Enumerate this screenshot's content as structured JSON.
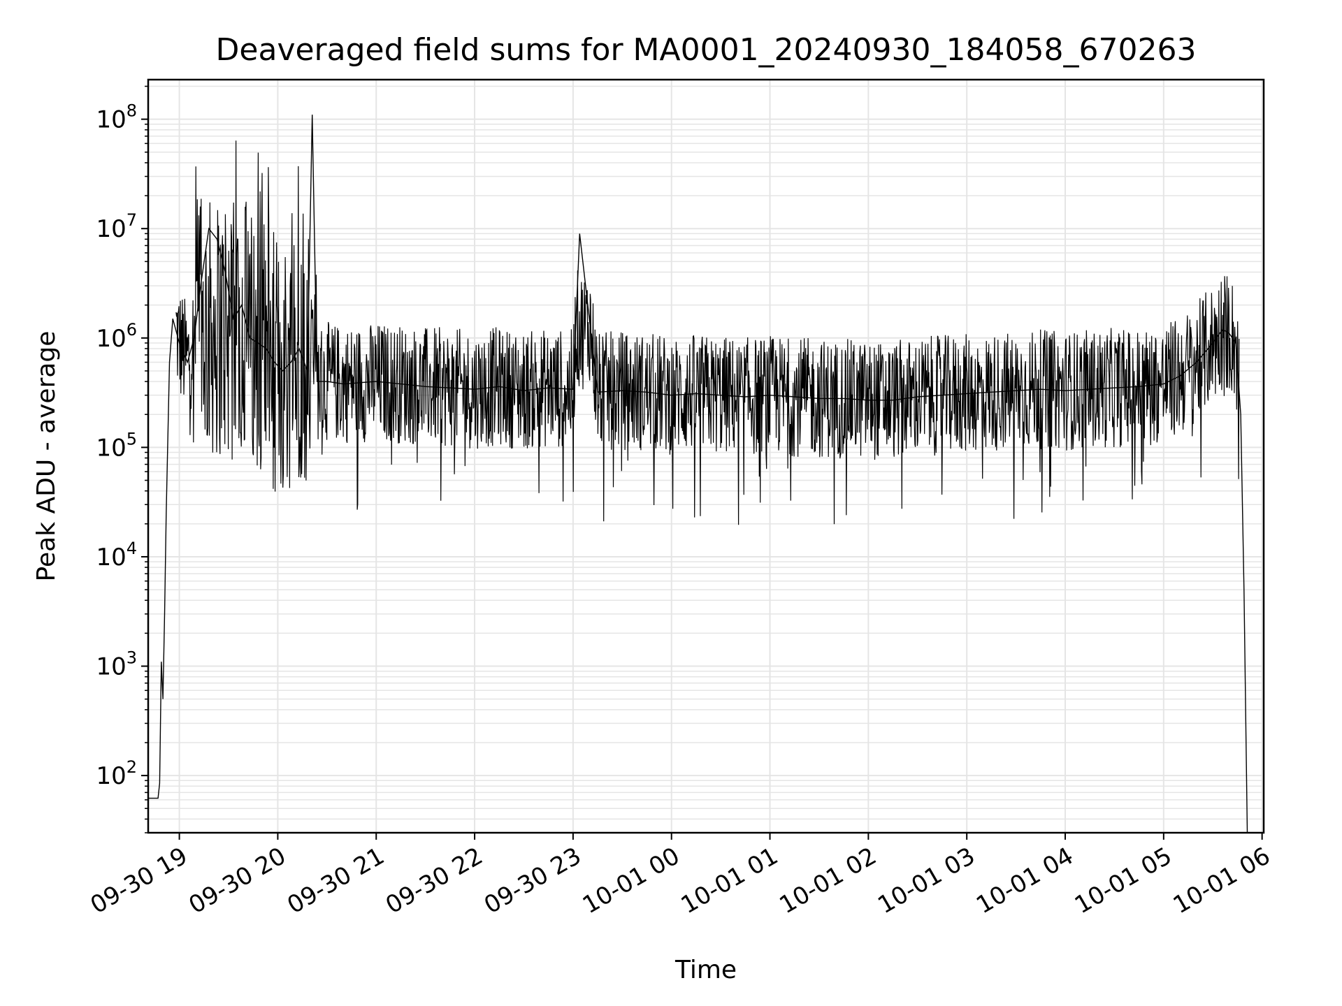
{
  "chart_data": {
    "type": "line",
    "title": "Deaveraged field sums for MA0001_20240930_184058_670263",
    "xlabel": "Time",
    "ylabel": "Peak ADU - average",
    "yscale": "log",
    "ylim": [
      30,
      230000000
    ],
    "xlim": [
      "2024-09-30 18:41",
      "2024-10-01 06:01"
    ],
    "grid": true,
    "legend": "none",
    "line_color": "#000000",
    "grid_color": "#e5e5e5",
    "x_ticks": [
      {
        "time": "2024-09-30 19:00",
        "label": "09-30 19"
      },
      {
        "time": "2024-09-30 20:00",
        "label": "09-30 20"
      },
      {
        "time": "2024-09-30 21:00",
        "label": "09-30 21"
      },
      {
        "time": "2024-09-30 22:00",
        "label": "09-30 22"
      },
      {
        "time": "2024-09-30 23:00",
        "label": "09-30 23"
      },
      {
        "time": "2024-10-01 00:00",
        "label": "10-01 00"
      },
      {
        "time": "2024-10-01 01:00",
        "label": "10-01 01"
      },
      {
        "time": "2024-10-01 02:00",
        "label": "10-01 02"
      },
      {
        "time": "2024-10-01 03:00",
        "label": "10-01 03"
      },
      {
        "time": "2024-10-01 04:00",
        "label": "10-01 04"
      },
      {
        "time": "2024-10-01 05:00",
        "label": "10-01 05"
      },
      {
        "time": "2024-10-01 06:00",
        "label": "10-01 06"
      }
    ],
    "y_ticks": [
      {
        "value": 100,
        "base": "10",
        "exp": "2"
      },
      {
        "value": 1000,
        "base": "10",
        "exp": "3"
      },
      {
        "value": 10000,
        "base": "10",
        "exp": "4"
      },
      {
        "value": 100000,
        "base": "10",
        "exp": "5"
      },
      {
        "value": 1000000,
        "base": "10",
        "exp": "6"
      },
      {
        "value": 10000000,
        "base": "10",
        "exp": "7"
      },
      {
        "value": 100000000,
        "base": "10",
        "exp": "8"
      }
    ],
    "series": [
      {
        "x": [
          "2024-09-30 18:41",
          "2024-09-30 18:47",
          "2024-09-30 18:48",
          "2024-09-30 18:49",
          "2024-09-30 18:50",
          "2024-09-30 18:51",
          "2024-09-30 18:52",
          "2024-09-30 18:54",
          "2024-09-30 18:56",
          "2024-09-30 19:00",
          "2024-09-30 19:05",
          "2024-09-30 19:09",
          "2024-09-30 19:13",
          "2024-09-30 19:18",
          "2024-09-30 19:23",
          "2024-09-30 19:28",
          "2024-09-30 19:33",
          "2024-09-30 19:38",
          "2024-09-30 19:43",
          "2024-09-30 19:48",
          "2024-09-30 19:53",
          "2024-09-30 19:58",
          "2024-09-30 20:03",
          "2024-09-30 20:08",
          "2024-09-30 20:13",
          "2024-09-30 20:18",
          "2024-09-30 20:21",
          "2024-09-30 20:24",
          "2024-09-30 20:30",
          "2024-09-30 20:40",
          "2024-09-30 21:00",
          "2024-09-30 21:15",
          "2024-09-30 21:30",
          "2024-09-30 21:45",
          "2024-09-30 22:00",
          "2024-09-30 22:15",
          "2024-09-30 22:30",
          "2024-09-30 22:45",
          "2024-09-30 23:00",
          "2024-09-30 23:04",
          "2024-09-30 23:15",
          "2024-09-30 23:30",
          "2024-09-30 23:45",
          "2024-10-01 00:00",
          "2024-10-01 00:15",
          "2024-10-01 00:30",
          "2024-10-01 00:45",
          "2024-10-01 01:00",
          "2024-10-01 01:15",
          "2024-10-01 01:30",
          "2024-10-01 01:45",
          "2024-10-01 02:00",
          "2024-10-01 02:15",
          "2024-10-01 02:30",
          "2024-10-01 02:45",
          "2024-10-01 03:00",
          "2024-10-01 03:15",
          "2024-10-01 03:30",
          "2024-10-01 03:45",
          "2024-10-01 04:00",
          "2024-10-01 04:15",
          "2024-10-01 04:30",
          "2024-10-01 04:45",
          "2024-10-01 05:00",
          "2024-10-01 05:10",
          "2024-10-01 05:20",
          "2024-10-01 05:30",
          "2024-10-01 05:36",
          "2024-10-01 05:40",
          "2024-10-01 05:44",
          "2024-10-01 05:47",
          "2024-10-01 05:49",
          "2024-10-01 05:51"
        ],
        "y": [
          62,
          62,
          85,
          1100,
          500,
          3000,
          25000,
          600000,
          1500000,
          900000,
          600000,
          1000000,
          3000000,
          10000000,
          8000000,
          4000000,
          1500000,
          2000000,
          1000000,
          900000,
          800000,
          600000,
          500000,
          600000,
          800000,
          500000,
          110000000,
          400000,
          400000,
          380000,
          400000,
          380000,
          360000,
          350000,
          340000,
          360000,
          330000,
          350000,
          340000,
          9000000,
          320000,
          330000,
          320000,
          300000,
          310000,
          300000,
          290000,
          300000,
          290000,
          280000,
          280000,
          270000,
          270000,
          290000,
          300000,
          310000,
          320000,
          330000,
          340000,
          330000,
          340000,
          350000,
          360000,
          380000,
          450000,
          600000,
          900000,
          1200000,
          1100000,
          900000,
          200000,
          5000,
          30
        ]
      }
    ]
  }
}
